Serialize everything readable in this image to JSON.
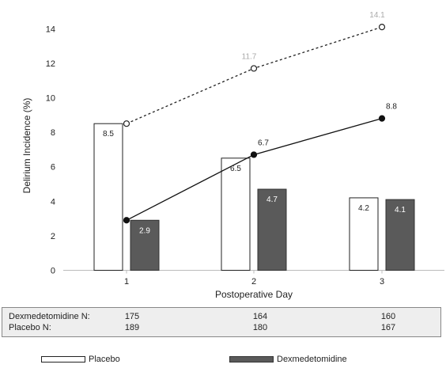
{
  "chart_data": {
    "type": "bar",
    "categories": [
      "1",
      "2",
      "3"
    ],
    "xlabel": "Postoperative Day",
    "ylabel": "Delirium Incidence (%)",
    "ylim": [
      0,
      16
    ],
    "yticks": [
      0,
      2,
      4,
      6,
      8,
      10,
      12,
      14
    ],
    "series": [
      {
        "name": "Placebo",
        "kind": "bar",
        "values": [
          8.5,
          6.5,
          4.2
        ],
        "labels": [
          "8.5",
          "6.5",
          "4.2"
        ],
        "fill": "#ffffff",
        "stroke": "#222222"
      },
      {
        "name": "Dexmedetomidine",
        "kind": "bar",
        "values": [
          2.9,
          4.7,
          4.1
        ],
        "labels": [
          "2.9",
          "4.7",
          "4.1"
        ],
        "fill": "#5a5a5a",
        "stroke": "#333333"
      },
      {
        "kind": "line",
        "style": "dashed",
        "marker": "open-circle",
        "values": [
          8.5,
          11.7,
          14.1
        ],
        "labels": [
          "",
          "11.7",
          "14.1"
        ],
        "color": "#222222",
        "label_color": "#aaaaaa"
      },
      {
        "kind": "line",
        "style": "solid",
        "marker": "filled-circle",
        "values": [
          2.9,
          6.7,
          8.8
        ],
        "labels": [
          "",
          "6.7",
          "8.8"
        ],
        "color": "#111111",
        "label_color": "#222222"
      }
    ],
    "grid": false,
    "legend_position": "bottom"
  },
  "n_table": {
    "rows": [
      {
        "label": "Dexmedetomidine N:",
        "values": [
          "175",
          "164",
          "160"
        ]
      },
      {
        "label": "Placebo N:",
        "values": [
          "189",
          "180",
          "167"
        ]
      }
    ]
  },
  "legend": {
    "placebo_label": "Placebo",
    "dex_label": "Dexmedetomidine"
  }
}
